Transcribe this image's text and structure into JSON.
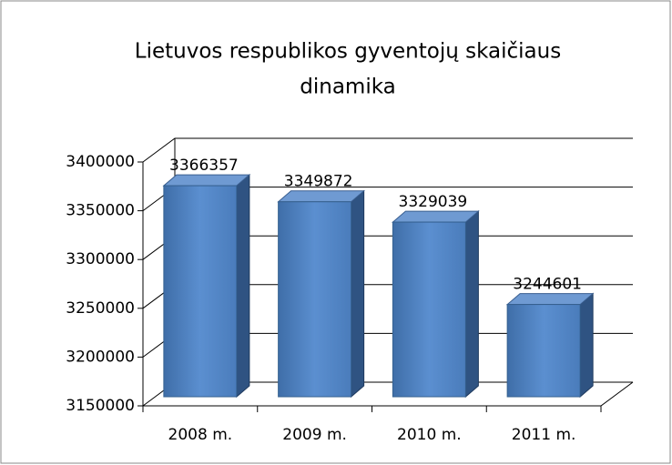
{
  "chart_data": {
    "type": "bar3d",
    "title": [
      "Lietuvos respublikos gyventojų skaičiaus",
      "dinamika"
    ],
    "categories": [
      "2008 m.",
      "2009 m.",
      "2010 m.",
      "2011 m."
    ],
    "values": [
      3366357,
      3349872,
      3329039,
      3244601
    ],
    "color": "#4f81bd",
    "ylim": [
      3150000,
      3400000
    ],
    "yticks": [
      3150000,
      3200000,
      3250000,
      3300000,
      3350000,
      3400000
    ],
    "grid": true
  }
}
